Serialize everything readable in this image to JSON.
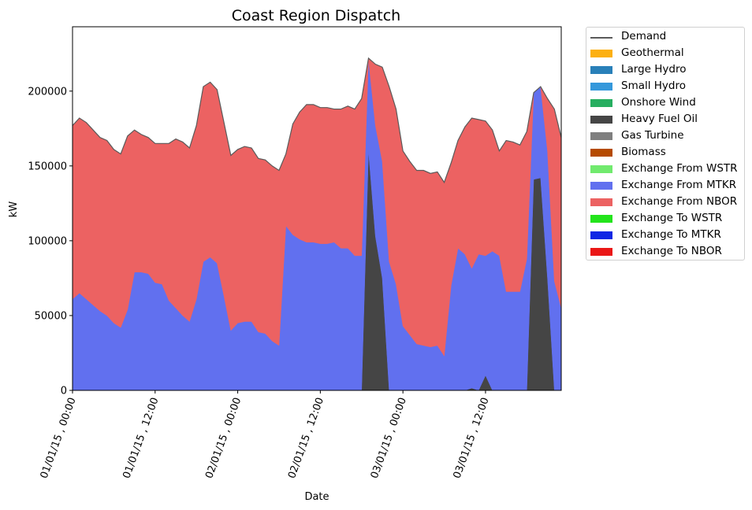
{
  "chart_data": {
    "type": "area",
    "title": "Coast Region Dispatch",
    "xlabel": "Date",
    "ylabel": "kW",
    "ylim": [
      0,
      243000
    ],
    "yticks": [
      0,
      50000,
      100000,
      150000,
      200000
    ],
    "xticks": [
      {
        "label": "01/01/15 , 00:00",
        "at": "2015-01-01 00:00"
      },
      {
        "label": "01/01/15 , 12:00",
        "at": "2015-01-01 12:00"
      },
      {
        "label": "02/01/15 , 00:00",
        "at": "2015-01-02 00:00"
      },
      {
        "label": "02/01/15 , 12:00",
        "at": "2015-01-02 12:00"
      },
      {
        "label": "03/01/15 , 00:00",
        "at": "2015-01-03 00:00"
      },
      {
        "label": "03/01/15 , 12:00",
        "at": "2015-01-03 12:00"
      }
    ],
    "x": [
      "2015-01-01 00:00",
      "2015-01-01 01:00",
      "2015-01-01 02:00",
      "2015-01-01 03:00",
      "2015-01-01 04:00",
      "2015-01-01 05:00",
      "2015-01-01 06:00",
      "2015-01-01 07:00",
      "2015-01-01 08:00",
      "2015-01-01 09:00",
      "2015-01-01 10:00",
      "2015-01-01 11:00",
      "2015-01-01 12:00",
      "2015-01-01 13:00",
      "2015-01-01 14:00",
      "2015-01-01 15:00",
      "2015-01-01 16:00",
      "2015-01-01 17:00",
      "2015-01-01 18:00",
      "2015-01-01 19:00",
      "2015-01-01 20:00",
      "2015-01-01 21:00",
      "2015-01-01 22:00",
      "2015-01-01 23:00",
      "2015-01-02 00:00",
      "2015-01-02 01:00",
      "2015-01-02 02:00",
      "2015-01-02 03:00",
      "2015-01-02 04:00",
      "2015-01-02 05:00",
      "2015-01-02 06:00",
      "2015-01-02 07:00",
      "2015-01-02 08:00",
      "2015-01-02 09:00",
      "2015-01-02 10:00",
      "2015-01-02 11:00",
      "2015-01-02 12:00",
      "2015-01-02 13:00",
      "2015-01-02 14:00",
      "2015-01-02 15:00",
      "2015-01-02 16:00",
      "2015-01-02 17:00",
      "2015-01-02 18:00",
      "2015-01-02 19:00",
      "2015-01-02 20:00",
      "2015-01-02 21:00",
      "2015-01-02 22:00",
      "2015-01-02 23:00",
      "2015-01-03 00:00",
      "2015-01-03 01:00",
      "2015-01-03 02:00",
      "2015-01-03 03:00",
      "2015-01-03 04:00",
      "2015-01-03 05:00",
      "2015-01-03 06:00",
      "2015-01-03 07:00",
      "2015-01-03 08:00",
      "2015-01-03 09:00",
      "2015-01-03 10:00",
      "2015-01-03 11:00",
      "2015-01-03 12:00",
      "2015-01-03 13:00",
      "2015-01-03 14:00",
      "2015-01-03 15:00",
      "2015-01-03 16:00",
      "2015-01-03 17:00",
      "2015-01-03 18:00",
      "2015-01-03 19:00",
      "2015-01-03 20:00",
      "2015-01-03 21:00",
      "2015-01-03 22:00",
      "2015-01-03 23:00"
    ],
    "series": [
      {
        "name": "Demand",
        "kind": "line",
        "color": "#5a5a5a",
        "values": [
          177000,
          182000,
          179000,
          174000,
          169000,
          167000,
          161000,
          158000,
          170000,
          174000,
          171000,
          169000,
          165000,
          165000,
          165000,
          168000,
          166000,
          162000,
          177000,
          203000,
          206000,
          201000,
          179000,
          157000,
          161000,
          163000,
          162000,
          155000,
          154000,
          150000,
          147000,
          158000,
          178000,
          186000,
          191000,
          191000,
          189000,
          189000,
          188000,
          188000,
          190000,
          188000,
          195000,
          222000,
          218000,
          216000,
          203000,
          188000,
          160000,
          153000,
          147000,
          147000,
          145000,
          146000,
          139000,
          152000,
          167000,
          176000,
          182000,
          181000,
          180000,
          174000,
          160000,
          167000,
          166000,
          164000,
          173000,
          199000,
          203000,
          195000,
          188000,
          169000
        ]
      },
      {
        "name": "Geothermal",
        "color": "#fcb011",
        "values": [
          0,
          0,
          0,
          0,
          0,
          0,
          0,
          0,
          0,
          0,
          0,
          0,
          0,
          0,
          0,
          0,
          0,
          0,
          0,
          0,
          0,
          0,
          0,
          0,
          0,
          0,
          0,
          0,
          0,
          0,
          0,
          0,
          0,
          0,
          0,
          0,
          0,
          0,
          0,
          0,
          0,
          0,
          0,
          0,
          0,
          0,
          0,
          0,
          0,
          0,
          0,
          0,
          0,
          0,
          0,
          0,
          0,
          0,
          0,
          0,
          0,
          0,
          0,
          0,
          0,
          0,
          0,
          0,
          0,
          0,
          0,
          0
        ]
      },
      {
        "name": "Large Hydro",
        "color": "#2980b9",
        "values": [
          0,
          0,
          0,
          0,
          0,
          0,
          0,
          0,
          0,
          0,
          0,
          0,
          0,
          0,
          0,
          0,
          0,
          0,
          0,
          0,
          0,
          0,
          0,
          0,
          0,
          0,
          0,
          0,
          0,
          0,
          0,
          0,
          0,
          0,
          0,
          0,
          0,
          0,
          0,
          0,
          0,
          0,
          0,
          0,
          0,
          0,
          0,
          0,
          0,
          0,
          0,
          0,
          0,
          0,
          0,
          0,
          0,
          0,
          0,
          0,
          0,
          0,
          0,
          0,
          0,
          0,
          0,
          0,
          0,
          0,
          0,
          0
        ]
      },
      {
        "name": "Small Hydro",
        "color": "#3498db",
        "values": [
          0,
          0,
          0,
          0,
          0,
          0,
          0,
          0,
          0,
          0,
          0,
          0,
          0,
          0,
          0,
          0,
          0,
          0,
          0,
          0,
          0,
          0,
          0,
          0,
          0,
          0,
          0,
          0,
          0,
          0,
          0,
          0,
          0,
          0,
          0,
          0,
          0,
          0,
          0,
          0,
          0,
          0,
          0,
          0,
          0,
          0,
          0,
          0,
          0,
          0,
          0,
          0,
          0,
          0,
          0,
          0,
          0,
          0,
          0,
          0,
          0,
          0,
          0,
          0,
          0,
          0,
          0,
          0,
          0,
          0,
          0,
          0
        ]
      },
      {
        "name": "Onshore Wind",
        "color": "#27ae60",
        "values": [
          0,
          0,
          0,
          0,
          0,
          0,
          0,
          0,
          0,
          0,
          0,
          0,
          0,
          0,
          0,
          0,
          0,
          0,
          0,
          0,
          0,
          0,
          0,
          0,
          0,
          0,
          0,
          0,
          0,
          0,
          0,
          0,
          0,
          0,
          0,
          0,
          0,
          0,
          0,
          0,
          0,
          0,
          0,
          0,
          0,
          0,
          0,
          0,
          0,
          0,
          0,
          0,
          0,
          0,
          0,
          0,
          0,
          0,
          0,
          0,
          0,
          0,
          0,
          0,
          0,
          0,
          0,
          0,
          0,
          0,
          0,
          0
        ]
      },
      {
        "name": "Heavy Fuel Oil",
        "color": "#454545",
        "values": [
          0,
          0,
          0,
          0,
          0,
          0,
          0,
          0,
          0,
          0,
          0,
          0,
          0,
          0,
          0,
          0,
          0,
          0,
          0,
          0,
          0,
          0,
          0,
          0,
          0,
          0,
          0,
          0,
          0,
          0,
          0,
          0,
          0,
          0,
          0,
          0,
          0,
          0,
          0,
          0,
          0,
          0,
          0,
          160000,
          103000,
          75000,
          0,
          0,
          0,
          0,
          0,
          0,
          0,
          0,
          0,
          0,
          0,
          0,
          1500,
          0,
          10000,
          0,
          0,
          0,
          0,
          0,
          0,
          141000,
          142000,
          75000,
          0,
          0
        ]
      },
      {
        "name": "Gas Turbine",
        "color": "#7f7f7f",
        "values": [
          0,
          0,
          0,
          0,
          0,
          0,
          0,
          0,
          0,
          0,
          0,
          0,
          0,
          0,
          0,
          0,
          0,
          0,
          0,
          0,
          0,
          0,
          0,
          0,
          0,
          0,
          0,
          0,
          0,
          0,
          0,
          0,
          0,
          0,
          0,
          0,
          0,
          0,
          0,
          0,
          0,
          0,
          0,
          0,
          0,
          0,
          0,
          0,
          0,
          0,
          0,
          0,
          0,
          0,
          0,
          0,
          0,
          0,
          0,
          0,
          0,
          0,
          0,
          0,
          0,
          0,
          0,
          0,
          0,
          0,
          0,
          0
        ]
      },
      {
        "name": "Biomass",
        "color": "#b54b00",
        "values": [
          0,
          0,
          0,
          0,
          0,
          0,
          0,
          0,
          0,
          0,
          0,
          0,
          0,
          0,
          0,
          0,
          0,
          0,
          0,
          0,
          0,
          0,
          0,
          0,
          0,
          0,
          0,
          0,
          0,
          0,
          0,
          0,
          0,
          0,
          0,
          0,
          0,
          0,
          0,
          0,
          0,
          0,
          0,
          0,
          0,
          0,
          0,
          0,
          0,
          0,
          0,
          0,
          0,
          0,
          0,
          0,
          0,
          0,
          0,
          0,
          0,
          0,
          0,
          0,
          0,
          0,
          0,
          0,
          0,
          0,
          0,
          0
        ]
      },
      {
        "name": "Exchange From WSTR",
        "color": "#71ea6e",
        "values": [
          0,
          0,
          0,
          0,
          0,
          0,
          0,
          0,
          0,
          0,
          0,
          0,
          0,
          0,
          0,
          0,
          0,
          0,
          0,
          0,
          0,
          0,
          0,
          0,
          0,
          0,
          0,
          0,
          0,
          0,
          0,
          0,
          0,
          0,
          0,
          0,
          0,
          0,
          0,
          0,
          0,
          0,
          0,
          0,
          0,
          0,
          0,
          0,
          0,
          0,
          0,
          0,
          0,
          0,
          0,
          0,
          0,
          0,
          0,
          0,
          0,
          0,
          0,
          0,
          0,
          0,
          0,
          0,
          0,
          0,
          0,
          0
        ]
      },
      {
        "name": "Exchange From MTKR",
        "color": "#6170ef",
        "values": [
          61000,
          65000,
          61000,
          57000,
          53000,
          50000,
          45000,
          42000,
          54000,
          79000,
          79000,
          78000,
          72000,
          71000,
          60000,
          55000,
          50000,
          46000,
          61000,
          86000,
          89000,
          85000,
          63000,
          40000,
          45000,
          46000,
          46000,
          39000,
          38000,
          33000,
          30000,
          110000,
          104000,
          101000,
          99000,
          99000,
          98000,
          98000,
          99000,
          95000,
          95000,
          90000,
          90000,
          61000,
          74000,
          78000,
          86000,
          71000,
          43000,
          37000,
          31000,
          30000,
          29000,
          30000,
          23000,
          70000,
          95000,
          91000,
          80000,
          91000,
          80000,
          93000,
          90000,
          66000,
          66000,
          66000,
          88000,
          58000,
          61000,
          85000,
          73000,
          55000
        ]
      },
      {
        "name": "Exchange From NBOR",
        "color": "#ec6262",
        "values": [
          116000,
          117000,
          118000,
          117000,
          116000,
          117000,
          116000,
          116000,
          116000,
          95000,
          92000,
          91000,
          93000,
          94000,
          105000,
          113000,
          116000,
          116000,
          116000,
          117000,
          117000,
          116000,
          116000,
          117000,
          116000,
          117000,
          116000,
          116000,
          116000,
          117000,
          117000,
          48000,
          74000,
          85000,
          92000,
          92000,
          91000,
          91000,
          89000,
          93000,
          95000,
          98000,
          105000,
          1000,
          41000,
          63000,
          117000,
          117000,
          117000,
          116000,
          116000,
          117000,
          116000,
          116000,
          116000,
          82000,
          72000,
          85000,
          100500,
          90000,
          90000,
          81000,
          70000,
          101000,
          100000,
          98000,
          85000,
          0,
          0,
          35000,
          115000,
          114000
        ]
      },
      {
        "name": "Exchange To WSTR",
        "color": "#23e41c",
        "values": [
          0,
          0,
          0,
          0,
          0,
          0,
          0,
          0,
          0,
          0,
          0,
          0,
          0,
          0,
          0,
          0,
          0,
          0,
          0,
          0,
          0,
          0,
          0,
          0,
          0,
          0,
          0,
          0,
          0,
          0,
          0,
          0,
          0,
          0,
          0,
          0,
          0,
          0,
          0,
          0,
          0,
          0,
          0,
          0,
          0,
          0,
          0,
          0,
          0,
          0,
          0,
          0,
          0,
          0,
          0,
          0,
          0,
          0,
          0,
          0,
          0,
          0,
          0,
          0,
          0,
          0,
          0,
          0,
          0,
          0,
          0,
          0
        ]
      },
      {
        "name": "Exchange To MTKR",
        "color": "#1027e4",
        "values": [
          0,
          0,
          0,
          0,
          0,
          0,
          0,
          0,
          0,
          0,
          0,
          0,
          0,
          0,
          0,
          0,
          0,
          0,
          0,
          0,
          0,
          0,
          0,
          0,
          0,
          0,
          0,
          0,
          0,
          0,
          0,
          0,
          0,
          0,
          0,
          0,
          0,
          0,
          0,
          0,
          0,
          0,
          0,
          0,
          0,
          0,
          0,
          0,
          0,
          0,
          0,
          0,
          0,
          0,
          0,
          0,
          0,
          0,
          0,
          0,
          0,
          0,
          0,
          0,
          0,
          0,
          0,
          0,
          0,
          0,
          0,
          0
        ]
      },
      {
        "name": "Exchange To NBOR",
        "color": "#ea1717",
        "values": [
          0,
          0,
          0,
          0,
          0,
          0,
          0,
          0,
          0,
          0,
          0,
          0,
          0,
          0,
          0,
          0,
          0,
          0,
          0,
          0,
          0,
          0,
          0,
          0,
          0,
          0,
          0,
          0,
          0,
          0,
          0,
          0,
          0,
          0,
          0,
          0,
          0,
          0,
          0,
          0,
          0,
          0,
          0,
          0,
          0,
          0,
          0,
          0,
          0,
          0,
          0,
          0,
          0,
          0,
          0,
          0,
          0,
          0,
          0,
          0,
          0,
          0,
          0,
          0,
          0,
          0,
          0,
          0,
          0,
          0,
          0,
          0
        ]
      }
    ],
    "legend": "outside-right"
  }
}
